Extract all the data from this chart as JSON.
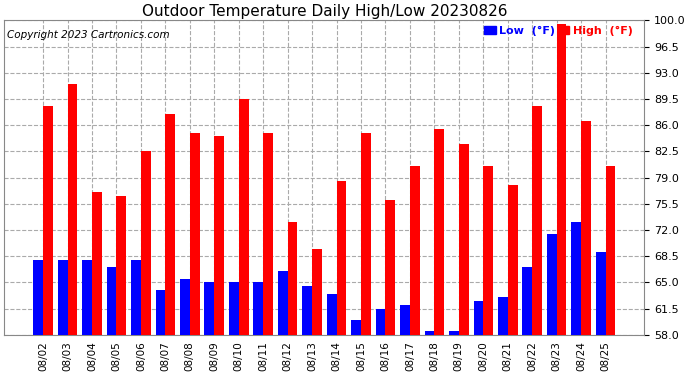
{
  "title": "Outdoor Temperature Daily High/Low 20230826",
  "copyright": "Copyright 2023 Cartronics.com",
  "dates": [
    "08/02",
    "08/03",
    "08/04",
    "08/05",
    "08/06",
    "08/07",
    "08/08",
    "08/09",
    "08/10",
    "08/11",
    "08/12",
    "08/13",
    "08/14",
    "08/15",
    "08/16",
    "08/17",
    "08/18",
    "08/19",
    "08/20",
    "08/21",
    "08/22",
    "08/23",
    "08/24",
    "08/25"
  ],
  "highs": [
    88.5,
    91.5,
    77.0,
    76.5,
    82.5,
    87.5,
    85.0,
    84.5,
    89.5,
    85.0,
    73.0,
    69.5,
    78.5,
    85.0,
    76.0,
    80.5,
    85.5,
    83.5,
    80.5,
    78.0,
    88.5,
    99.5,
    86.5,
    80.5
  ],
  "lows": [
    68.0,
    68.0,
    68.0,
    67.0,
    68.0,
    64.0,
    65.5,
    65.0,
    65.0,
    65.0,
    66.5,
    64.5,
    63.5,
    60.0,
    61.5,
    62.0,
    58.5,
    58.5,
    62.5,
    63.0,
    67.0,
    71.5,
    73.0,
    69.0
  ],
  "high_color": "#ff0000",
  "low_color": "#0000ff",
  "bg_color": "#ffffff",
  "grid_color": "#aaaaaa",
  "ylim_min": 58.0,
  "ylim_max": 100.0,
  "yticks": [
    58.0,
    61.5,
    65.0,
    68.5,
    72.0,
    75.5,
    79.0,
    82.5,
    86.0,
    89.5,
    93.0,
    96.5,
    100.0
  ],
  "title_fontsize": 11,
  "copyright_fontsize": 7.5,
  "legend_low_label": "Low  (°F)",
  "legend_high_label": "High  (°F)"
}
